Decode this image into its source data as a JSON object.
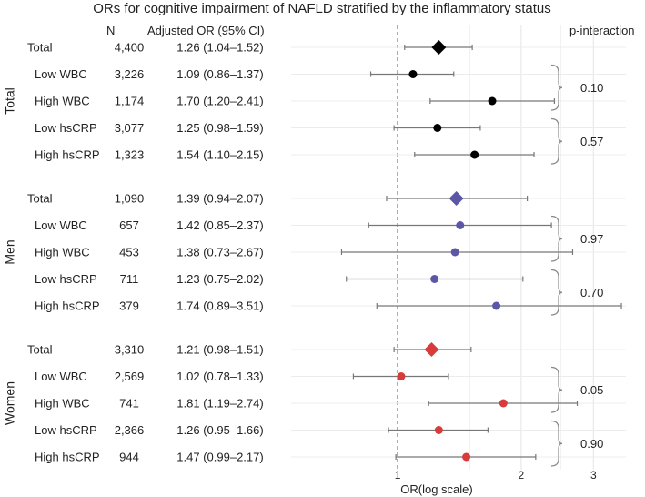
{
  "chart_data": {
    "type": "forest",
    "title": "ORs for cognitive impairment of NAFLD stratified by the inflammatory status",
    "xlabel": "OR(log scale)",
    "x_scale": "log",
    "x_ticks": [
      1,
      2,
      3
    ],
    "x_tick_labels": [
      "1",
      "2",
      "3"
    ],
    "xlim": [
      0.55,
      3.6
    ],
    "reference_line": 1,
    "headers": {
      "n": "N",
      "or_ci": "Adjusted OR (95% CI)",
      "p": "p-interaction"
    },
    "colors": {
      "Total": "#000000",
      "Men": "#5b57a6",
      "Women": "#d93a3a"
    },
    "groups": [
      {
        "name": "Total",
        "rows": [
          {
            "label": "Total",
            "n": "4,400",
            "or_text": "1.26 (1.04–1.52)",
            "or": 1.26,
            "lo": 1.04,
            "hi": 1.52,
            "marker": "diamond"
          },
          {
            "label": "Low WBC",
            "n": "3,226",
            "or_text": "1.09 (0.86–1.37)",
            "or": 1.09,
            "lo": 0.86,
            "hi": 1.37,
            "marker": "circle"
          },
          {
            "label": "High WBC",
            "n": "1,174",
            "or_text": "1.70 (1.20–2.41)",
            "or": 1.7,
            "lo": 1.2,
            "hi": 2.41,
            "marker": "circle"
          },
          {
            "label": "Low hsCRP",
            "n": "3,077",
            "or_text": "1.25 (0.98–1.59)",
            "or": 1.25,
            "lo": 0.98,
            "hi": 1.59,
            "marker": "circle"
          },
          {
            "label": "High hsCRP",
            "n": "1,323",
            "or_text": "1.54 (1.10–2.15)",
            "or": 1.54,
            "lo": 1.1,
            "hi": 2.15,
            "marker": "circle"
          }
        ],
        "p_interaction": [
          "0.10",
          "0.57"
        ]
      },
      {
        "name": "Men",
        "rows": [
          {
            "label": "Total",
            "n": "1,090",
            "or_text": "1.39 (0.94–2.07)",
            "or": 1.39,
            "lo": 0.94,
            "hi": 2.07,
            "marker": "diamond"
          },
          {
            "label": "Low WBC",
            "n": "657",
            "or_text": "1.42 (0.85–2.37)",
            "or": 1.42,
            "lo": 0.85,
            "hi": 2.37,
            "marker": "circle"
          },
          {
            "label": "High WBC",
            "n": "453",
            "or_text": "1.38 (0.73–2.67)",
            "or": 1.38,
            "lo": 0.73,
            "hi": 2.67,
            "marker": "circle"
          },
          {
            "label": "Low hsCRP",
            "n": "711",
            "or_text": "1.23 (0.75–2.02)",
            "or": 1.23,
            "lo": 0.75,
            "hi": 2.02,
            "marker": "circle"
          },
          {
            "label": "High hsCRP",
            "n": "379",
            "or_text": "1.74 (0.89–3.51)",
            "or": 1.74,
            "lo": 0.89,
            "hi": 3.51,
            "marker": "circle"
          }
        ],
        "p_interaction": [
          "0.97",
          "0.70"
        ]
      },
      {
        "name": "Women",
        "rows": [
          {
            "label": "Total",
            "n": "3,310",
            "or_text": "1.21 (0.98–1.51)",
            "or": 1.21,
            "lo": 0.98,
            "hi": 1.51,
            "marker": "diamond"
          },
          {
            "label": "Low WBC",
            "n": "2,569",
            "or_text": "1.02 (0.78–1.33)",
            "or": 1.02,
            "lo": 0.78,
            "hi": 1.33,
            "marker": "circle"
          },
          {
            "label": "High WBC",
            "n": "741",
            "or_text": "1.81 (1.19–2.74)",
            "or": 1.81,
            "lo": 1.19,
            "hi": 2.74,
            "marker": "circle"
          },
          {
            "label": "Low hsCRP",
            "n": "2,366",
            "or_text": "1.26 (0.95–1.66)",
            "or": 1.26,
            "lo": 0.95,
            "hi": 1.66,
            "marker": "circle"
          },
          {
            "label": "High hsCRP",
            "n": "944",
            "or_text": "1.47 (0.99–2.17)",
            "or": 1.47,
            "lo": 0.99,
            "hi": 2.17,
            "marker": "circle"
          }
        ],
        "p_interaction": [
          "0.05",
          "0.90"
        ]
      }
    ]
  }
}
